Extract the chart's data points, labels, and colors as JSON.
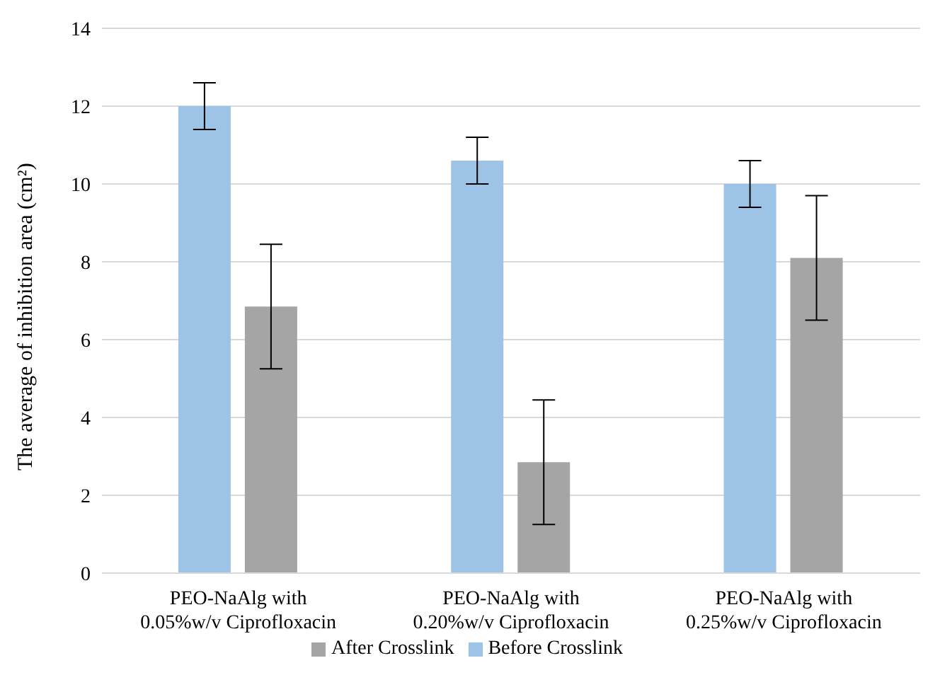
{
  "chart_data": {
    "type": "bar",
    "ylabel": "The average of inhibition area (cm²)",
    "categories": [
      "PEO-NaAlg with 0.05%w/v Ciprofloxacin",
      "PEO-NaAlg with 0.20%w/v Ciprofloxacin",
      "PEO-NaAlg with 0.25%w/v Ciprofloxacin"
    ],
    "series": [
      {
        "name": "Before Crosslink",
        "color": "#9dc3e6",
        "values": [
          12.0,
          10.6,
          10.0
        ],
        "errors": [
          0.6,
          0.6,
          0.6
        ]
      },
      {
        "name": "After Crosslink",
        "color": "#a5a5a5",
        "values": [
          6.85,
          2.85,
          8.1
        ],
        "errors": [
          1.6,
          1.6,
          1.6
        ]
      }
    ],
    "ylim": [
      0,
      14
    ],
    "yticks": [
      0,
      2,
      4,
      6,
      8,
      10,
      12,
      14
    ],
    "grid": "y",
    "legend": "bottom"
  }
}
